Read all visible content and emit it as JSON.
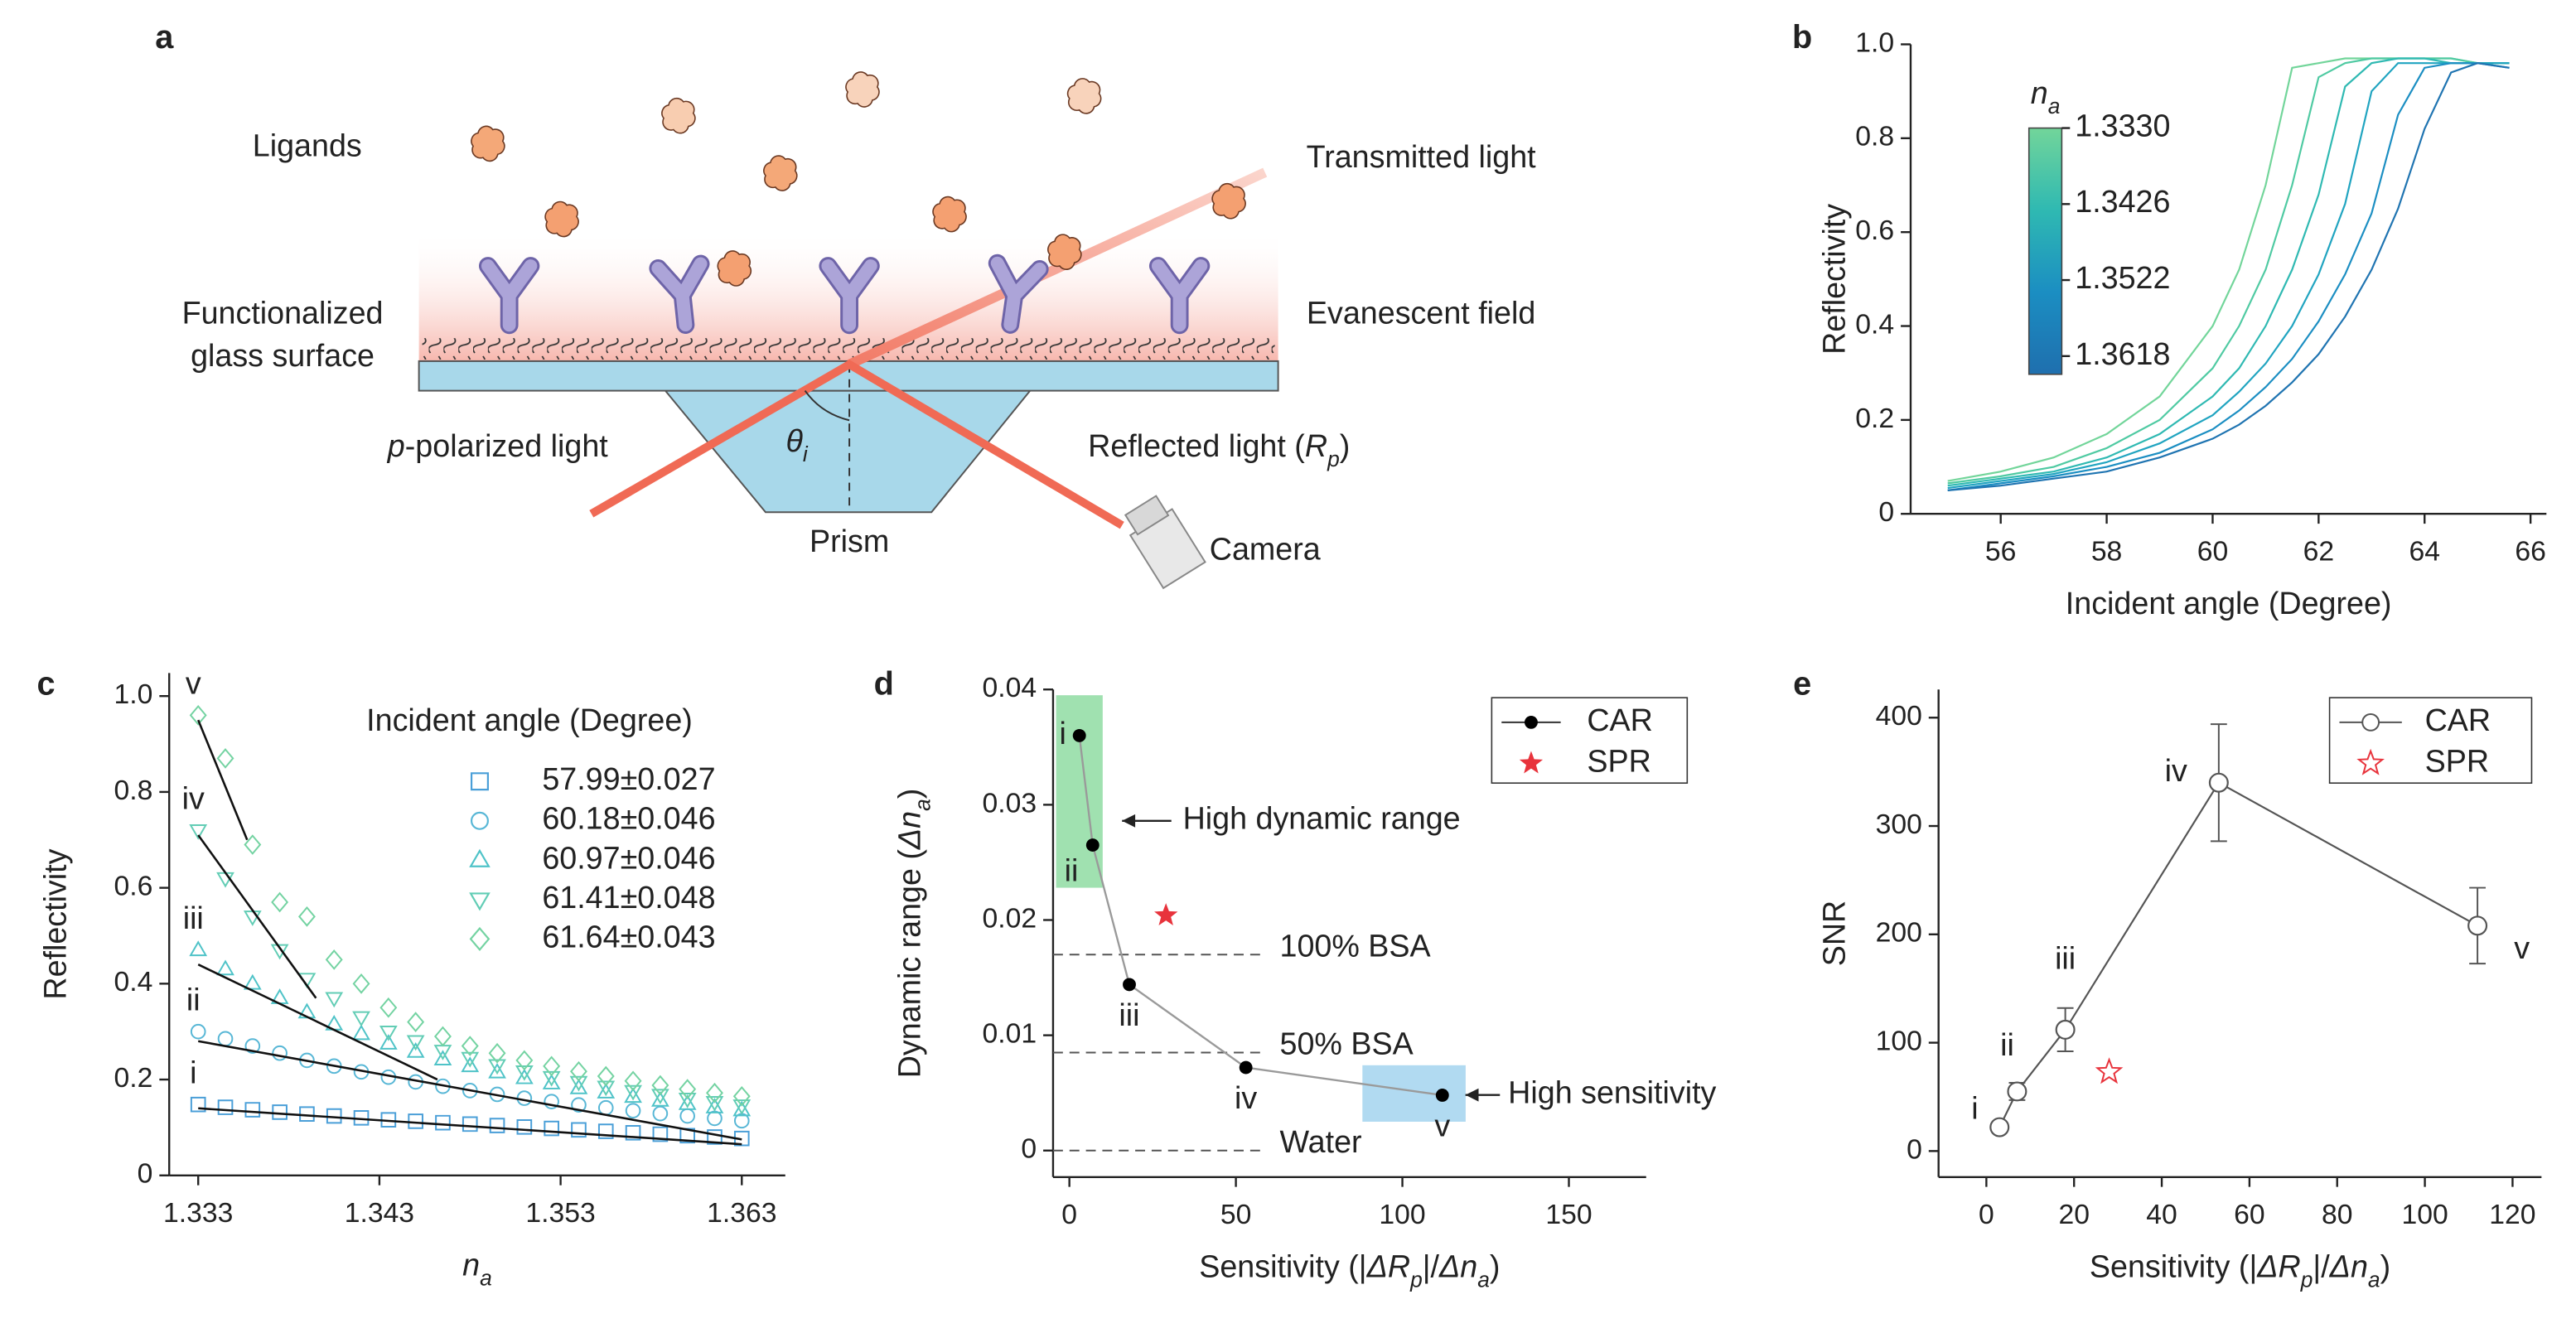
{
  "panel_labels": [
    "a",
    "b",
    "c",
    "d",
    "e"
  ],
  "diagram": {
    "ligands": "Ligands",
    "transmitted": "Transmitted light",
    "functionalized": [
      "Functionalized",
      "glass surface"
    ],
    "evanescent": "Evanescent field",
    "p_polarized": [
      {
        "t": "p",
        "i": true
      },
      {
        "t": "-polarized light"
      }
    ],
    "theta": [
      {
        "t": "θ",
        "i": true
      },
      {
        "t": "i",
        "i": true,
        "sub": true
      }
    ],
    "reflected": [
      {
        "t": "Reflected light ("
      },
      {
        "t": "R",
        "i": true
      },
      {
        "t": "p",
        "i": true,
        "sub": true
      },
      {
        "t": ")"
      }
    ],
    "prism": "Prism",
    "camera": "Camera"
  },
  "chart_data": [
    {
      "type": "line",
      "x": [
        55,
        56,
        57,
        58,
        59,
        60,
        60.5,
        61,
        61.5,
        62,
        62.5,
        63,
        63.5,
        64,
        64.5,
        65,
        65.6
      ],
      "series": [
        {
          "color": "#72d59a",
          "values": [
            0.07,
            0.09,
            0.12,
            0.17,
            0.25,
            0.4,
            0.52,
            0.7,
            0.95,
            0.96,
            0.97,
            0.97,
            0.97,
            0.97,
            0.97,
            0.96,
            0.96
          ]
        },
        {
          "color": "#4fcaa2",
          "values": [
            0.065,
            0.08,
            0.1,
            0.14,
            0.2,
            0.31,
            0.4,
            0.52,
            0.7,
            0.93,
            0.96,
            0.97,
            0.97,
            0.97,
            0.97,
            0.96,
            0.96
          ]
        },
        {
          "color": "#2fb9b2",
          "values": [
            0.06,
            0.075,
            0.09,
            0.12,
            0.17,
            0.25,
            0.31,
            0.4,
            0.52,
            0.68,
            0.91,
            0.96,
            0.97,
            0.97,
            0.96,
            0.96,
            0.96
          ]
        },
        {
          "color": "#20a4c0",
          "values": [
            0.055,
            0.07,
            0.085,
            0.11,
            0.15,
            0.21,
            0.26,
            0.32,
            0.4,
            0.51,
            0.66,
            0.9,
            0.96,
            0.96,
            0.96,
            0.96,
            0.96
          ]
        },
        {
          "color": "#1b8ec2",
          "values": [
            0.05,
            0.065,
            0.08,
            0.1,
            0.13,
            0.18,
            0.22,
            0.27,
            0.33,
            0.41,
            0.51,
            0.64,
            0.85,
            0.95,
            0.96,
            0.96,
            0.95
          ]
        },
        {
          "color": "#1f74b1",
          "values": [
            0.05,
            0.06,
            0.075,
            0.09,
            0.12,
            0.16,
            0.19,
            0.23,
            0.28,
            0.34,
            0.42,
            0.52,
            0.65,
            0.82,
            0.94,
            0.96,
            0.95
          ]
        }
      ],
      "xlim": [
        54.3,
        66.3
      ],
      "xticks": [
        56,
        58,
        60,
        62,
        64,
        66
      ],
      "ylim": [
        0,
        1
      ],
      "yticks": [
        0,
        0.2,
        0.4,
        0.6,
        0.8,
        {
          "value": 1,
          "label": "1.0"
        }
      ],
      "xlabel": "Incident angle (Degree)",
      "ylabel": "Reflectivity",
      "colorbar": {
        "title": [
          {
            "t": "n",
            "i": true
          },
          {
            "t": "a",
            "i": true,
            "sub": true
          }
        ],
        "colors": [
          "#72d59a",
          "#2fb9b2",
          "#1b8ec2",
          "#1f6fae"
        ],
        "lim": [
          1.333,
          1.3641
        ],
        "ticks": [
          {
            "value": 1.333,
            "label": "1.3330"
          },
          {
            "value": 1.3426,
            "label": "1.3426"
          },
          {
            "value": 1.3522,
            "label": "1.3522"
          },
          {
            "value": 1.3618,
            "label": "1.3618"
          }
        ]
      }
    },
    {
      "type": "scatter",
      "x": [
        1.333,
        1.3345,
        1.336,
        1.3375,
        1.339,
        1.3405,
        1.342,
        1.3435,
        1.345,
        1.3465,
        1.348,
        1.3495,
        1.351,
        1.3525,
        1.354,
        1.3555,
        1.357,
        1.3585,
        1.36,
        1.3615,
        1.363
      ],
      "series": [
        {
          "name": "57.99±0.027",
          "color": "#4a9fd8",
          "marker": "square",
          "values": [
            0.148,
            0.142,
            0.137,
            0.132,
            0.128,
            0.124,
            0.12,
            0.116,
            0.113,
            0.11,
            0.107,
            0.104,
            0.101,
            0.098,
            0.095,
            0.092,
            0.089,
            0.086,
            0.083,
            0.08,
            0.077
          ]
        },
        {
          "name": "60.18±0.046",
          "color": "#58b7d6",
          "marker": "circle",
          "values": [
            0.3,
            0.285,
            0.27,
            0.255,
            0.24,
            0.228,
            0.216,
            0.205,
            0.195,
            0.186,
            0.177,
            0.169,
            0.161,
            0.154,
            0.147,
            0.141,
            0.135,
            0.129,
            0.124,
            0.119,
            0.114
          ]
        },
        {
          "name": "60.97±0.046",
          "color": "#4fc3c8",
          "marker": "triangle-up",
          "values": [
            0.47,
            0.43,
            0.4,
            0.37,
            0.34,
            0.315,
            0.295,
            0.275,
            0.258,
            0.242,
            0.228,
            0.215,
            0.203,
            0.192,
            0.182,
            0.173,
            0.164,
            0.156,
            0.149,
            0.142,
            0.136
          ]
        },
        {
          "name": "61.41±0.048",
          "color": "#62cdb5",
          "marker": "triangle-down",
          "values": [
            0.72,
            0.62,
            0.54,
            0.47,
            0.41,
            0.37,
            0.33,
            0.3,
            0.28,
            0.26,
            0.245,
            0.23,
            0.217,
            0.205,
            0.195,
            0.185,
            0.176,
            0.168,
            0.16,
            0.153,
            0.146
          ]
        },
        {
          "name": "61.64±0.043",
          "color": "#74d3a2",
          "marker": "diamond",
          "values": [
            0.96,
            0.87,
            0.69,
            0.57,
            0.54,
            0.45,
            0.4,
            0.35,
            0.32,
            0.29,
            0.27,
            0.255,
            0.24,
            0.228,
            0.217,
            0.207,
            0.197,
            0.188,
            0.18,
            0.172,
            0.165
          ]
        }
      ],
      "fits": [
        {
          "x": [
            1.333,
            1.363
          ],
          "values": [
            0.14,
            0.065
          ]
        },
        {
          "x": [
            1.333,
            1.363
          ],
          "values": [
            0.28,
            0.075
          ]
        },
        {
          "x": [
            1.333,
            1.3462
          ],
          "values": [
            0.44,
            0.2
          ]
        },
        {
          "x": [
            1.333,
            1.3395
          ],
          "values": [
            0.71,
            0.37
          ]
        },
        {
          "x": [
            1.333,
            1.3357
          ],
          "values": [
            0.95,
            0.7
          ]
        }
      ],
      "point_labels": [
        "i",
        "ii",
        "iii",
        "iv",
        "v"
      ],
      "legend_title": "Incident angle (Degree)",
      "xlim": [
        1.3314,
        1.3654
      ],
      "xticks": [
        1.333,
        1.343,
        1.353,
        1.363
      ],
      "ylim": [
        0,
        1.048
      ],
      "yticks": [
        0,
        0.2,
        0.4,
        0.6,
        0.8,
        {
          "value": 1,
          "label": "1.0"
        }
      ],
      "xlabel": [
        {
          "t": "n",
          "i": true
        },
        {
          "t": "a",
          "i": true,
          "sub": true
        }
      ],
      "ylabel": "Reflectivity"
    },
    {
      "type": "line",
      "series": [
        {
          "name": "CAR",
          "color": "#000000",
          "line_color": "#9a9a9a",
          "marker": "dot",
          "x": [
            3,
            7,
            18,
            53,
            112
          ],
          "values": [
            0.036,
            0.0265,
            0.0144,
            0.0072,
            0.0048
          ]
        },
        {
          "name": "SPR",
          "color": "#e8333c",
          "marker": "star",
          "x": [
            29
          ],
          "values": [
            0.0204
          ]
        }
      ],
      "point_labels": [
        "i",
        "ii",
        "iii",
        "iv",
        "v"
      ],
      "reference_lines": [
        {
          "label": "100% BSA",
          "value": 0.017
        },
        {
          "label": "50% BSA",
          "value": 0.0085
        },
        {
          "label": "Water",
          "value": 0
        }
      ],
      "regions": [
        {
          "x": [
            -4,
            10
          ],
          "y": [
            0.0228,
            0.0395
          ],
          "color": "#8fdca2"
        },
        {
          "x": [
            88,
            119
          ],
          "y": [
            0.0025,
            0.0074
          ],
          "color": "#a3d4ef"
        }
      ],
      "annotations": [
        "High dynamic range",
        "High sensitivity"
      ],
      "xlim": [
        -4.9,
        173.2
      ],
      "xticks": [
        0,
        50,
        100,
        150
      ],
      "ylim": [
        -0.0023,
        0.04
      ],
      "yticks": [
        0,
        0.01,
        0.02,
        0.03,
        0.04
      ],
      "xlabel": [
        {
          "t": "Sensitivity (|"
        },
        {
          "t": "ΔR",
          "i": true
        },
        {
          "t": "p",
          "i": true,
          "sub": true
        },
        {
          "t": "|/"
        },
        {
          "t": "Δn",
          "i": true
        },
        {
          "t": "a",
          "i": true,
          "sub": true
        },
        {
          "t": ")"
        }
      ],
      "ylabel": [
        {
          "t": "Dynamic range ("
        },
        {
          "t": "Δn",
          "i": true
        },
        {
          "t": "a",
          "i": true,
          "sub": true
        },
        {
          "t": ")"
        }
      ]
    },
    {
      "type": "line",
      "series": [
        {
          "name": "CAR",
          "color": "#555555",
          "marker": "open-circle",
          "x": [
            3,
            7,
            18,
            53,
            112
          ],
          "values": [
            22,
            55,
            112,
            340,
            208
          ],
          "errors": [
            4,
            8,
            20,
            54,
            35
          ]
        },
        {
          "name": "SPR",
          "color": "#e8333c",
          "marker": "open-star",
          "x": [
            28
          ],
          "values": [
            73
          ]
        }
      ],
      "point_labels": [
        "i",
        "ii",
        "iii",
        "iv",
        "v"
      ],
      "xlim": [
        -10.9,
        126.6
      ],
      "xticks": [
        0,
        20,
        40,
        60,
        80,
        100,
        120
      ],
      "ylim": [
        -24,
        426
      ],
      "yticks": [
        0,
        100,
        200,
        300,
        400
      ],
      "xlabel": [
        {
          "t": "Sensitivity (|"
        },
        {
          "t": "ΔR",
          "i": true
        },
        {
          "t": "p",
          "i": true,
          "sub": true
        },
        {
          "t": "|/"
        },
        {
          "t": "Δn",
          "i": true
        },
        {
          "t": "a",
          "i": true,
          "sub": true
        },
        {
          "t": ")"
        }
      ],
      "ylabel": "SNR"
    }
  ]
}
